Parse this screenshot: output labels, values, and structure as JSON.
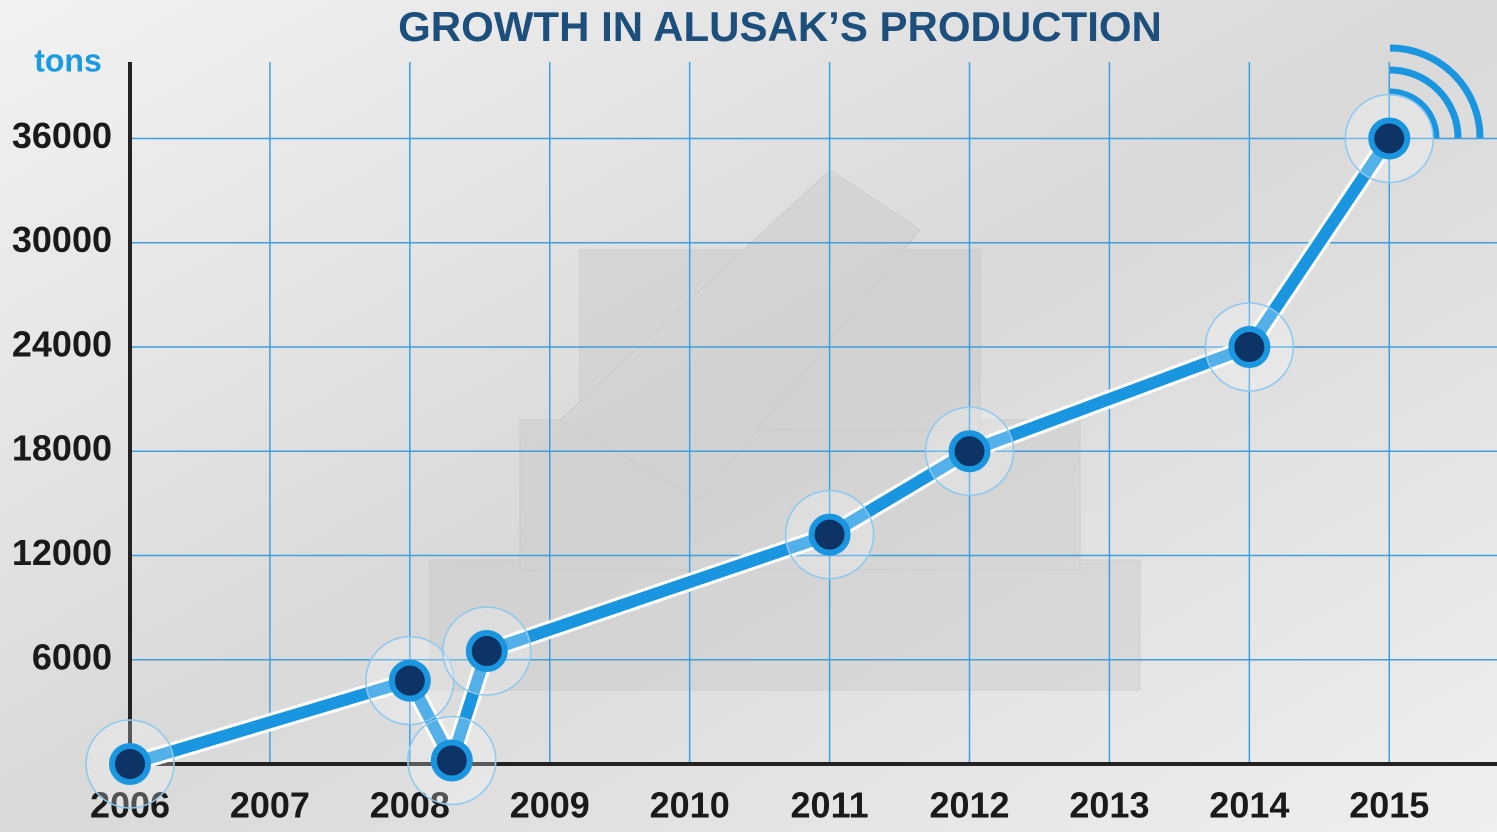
{
  "chart_data": {
    "type": "line",
    "title": "GROWTH IN ALUSAK’S PRODUCTION",
    "y_label": "tons",
    "x": [
      2006,
      2008,
      2008.3,
      2008.55,
      2011,
      2012,
      2014,
      2015
    ],
    "values": [
      0,
      4800,
      200,
      6500,
      13200,
      18000,
      24000,
      36000
    ],
    "color": "#1a96e0",
    "marker_color": "#0e3466",
    "xlim": [
      2006,
      2015.77
    ],
    "xticks": [
      2006,
      2007,
      2008,
      2009,
      2010,
      2011,
      2012,
      2013,
      2014,
      2015
    ],
    "ylim": [
      0,
      40400
    ],
    "yticks": [
      6000,
      12000,
      18000,
      24000,
      30000,
      36000
    ],
    "grid": true
  }
}
